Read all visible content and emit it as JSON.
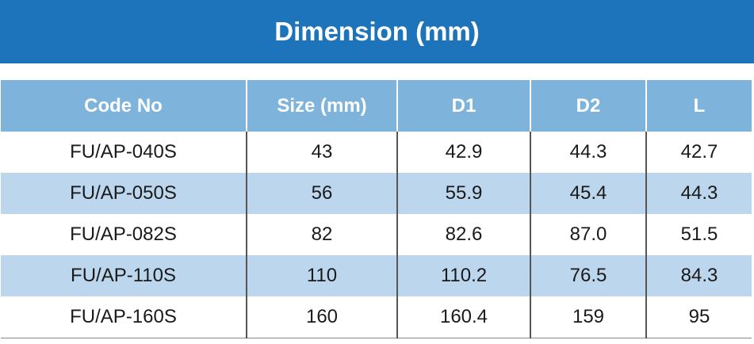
{
  "title": "Dimension (mm)",
  "headers": {
    "code": "Code No",
    "size": "Size (mm)",
    "d1": "D1",
    "d2": "D2",
    "l": "L"
  },
  "rows": [
    {
      "code": "FU/AP-040S",
      "size": "43",
      "d1": "42.9",
      "d2": "44.3",
      "l": "42.7"
    },
    {
      "code": "FU/AP-050S",
      "size": "56",
      "d1": "55.9",
      "d2": "45.4",
      "l": "44.3"
    },
    {
      "code": "FU/AP-082S",
      "size": "82",
      "d1": "82.6",
      "d2": "87.0",
      "l": "51.5"
    },
    {
      "code": "FU/AP-110S",
      "size": "110",
      "d1": "110.2",
      "d2": "76.5",
      "l": "84.3"
    },
    {
      "code": "FU/AP-160S",
      "size": "160",
      "d1": "160.4",
      "d2": "159",
      "l": "95"
    }
  ],
  "colors": {
    "title_bg": "#1e74bb",
    "header_bg": "#7eb3dc",
    "alt_row_bg": "#bcd6ee"
  }
}
